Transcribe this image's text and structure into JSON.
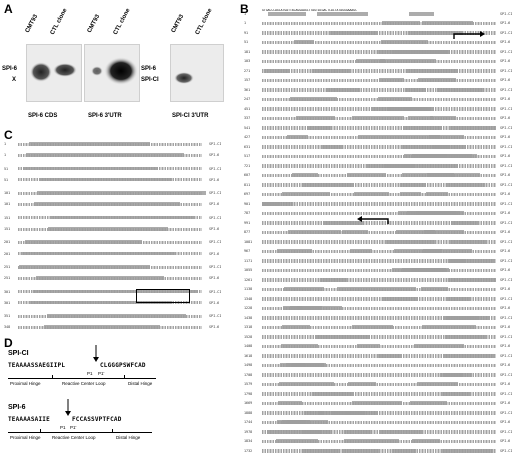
{
  "panels": {
    "a": "A",
    "b": "B",
    "c": "C",
    "d": "D"
  },
  "panel_a": {
    "blots": [
      {
        "lanes": [
          "CMT93",
          "CTL clone"
        ],
        "left_bands": [
          "SPI-6",
          "X"
        ],
        "right_bands": [],
        "caption": "SPI-6 CDS"
      },
      {
        "lanes": [
          "CMT93",
          "CTL clone"
        ],
        "left_bands": [],
        "right_bands": [
          "SPI-6",
          "SPI-CI"
        ],
        "caption": "SPI-6  3'UTR"
      },
      {
        "lanes": [
          "CMT93",
          "CTL clone"
        ],
        "left_bands": [],
        "right_bands": [],
        "caption": "SPI-CI  3'UTR"
      }
    ]
  },
  "panel_b": {
    "seq_first_line": "GTGACCCAGCATGATTACAGGAAGCTTAGTACGACTCACTATAGGGAAAGC",
    "row_tags": [
      "SPI-CI",
      "SPI-6"
    ],
    "left_numbers": [
      "1",
      "1",
      "91",
      "51",
      "181",
      "103",
      "271",
      "157",
      "361",
      "247",
      "451",
      "337",
      "541",
      "427",
      "631",
      "517",
      "721",
      "607",
      "811",
      "697",
      "901",
      "787",
      "991",
      "877",
      "1081",
      "967",
      "1171",
      "1055",
      "1261",
      "1138",
      "1348",
      "1228",
      "1438",
      "1318",
      "1528",
      "1408",
      "1618",
      "1498",
      "1708",
      "1579",
      "1798",
      "1669",
      "1888",
      "1744",
      "1978",
      "1834",
      "1732"
    ]
  },
  "panel_c": {
    "row_tags": [
      "SPI-CI",
      "SPI-6"
    ],
    "left_numbers": [
      "1",
      "1",
      "51",
      "51",
      "101",
      "101",
      "151",
      "151",
      "201",
      "201",
      "251",
      "251",
      "301",
      "301",
      "351",
      "348"
    ]
  },
  "panel_d": {
    "spici": {
      "title": "SPI-CI",
      "seq_a": "TEAAAASSAEGIIPL",
      "seq_b": "CLGGGPSWFCAD",
      "p1": "P1",
      "p1p": "P1'"
    },
    "spi6": {
      "title": "SPI-6",
      "seq_a": "TEAAAASAIIE",
      "seq_b": "FCCASSVPTFCAD",
      "p1": "P1",
      "p1p": "P1'"
    },
    "hinges": [
      "Proximal Hinge",
      "Reactive Center Loop",
      "Distal Hinge"
    ]
  }
}
